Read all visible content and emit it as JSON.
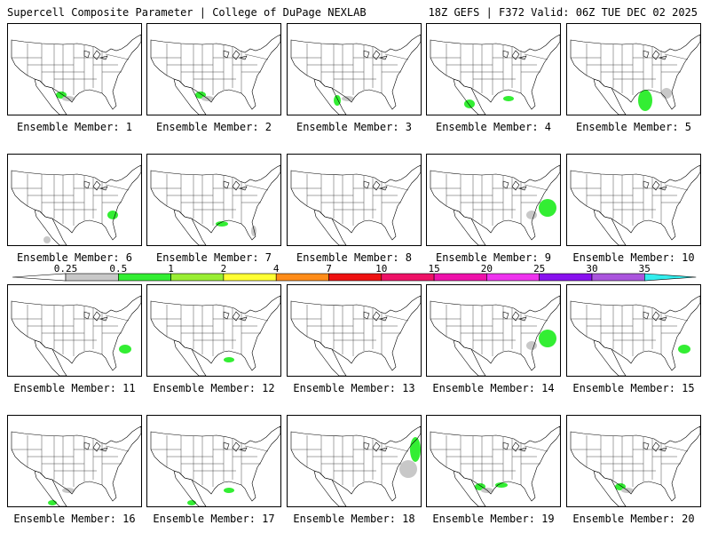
{
  "header": {
    "left": "Supercell Composite Parameter | College of DuPage NEXLAB",
    "right": "18Z GEFS | F372 Valid: 06Z TUE DEC 02 2025"
  },
  "colorbar": {
    "ticks": [
      "0.25",
      "0.5",
      "1",
      "2",
      "4",
      "7",
      "10",
      "15",
      "20",
      "25",
      "30",
      "35"
    ],
    "colors": [
      "#c8c8c8",
      "#33ee33",
      "#99ee33",
      "#ffff33",
      "#ff8c19",
      "#ee1111",
      "#ee1166",
      "#ee11aa",
      "#ee33ee",
      "#8811ee",
      "#aa55dd",
      "#33eeee"
    ]
  },
  "members": [
    {
      "label": "Ensemble Member: 1",
      "blobs": [
        {
          "region": "s-texas",
          "color": "#c8c8c8"
        },
        {
          "region": "s-texas",
          "color": "#33ee33"
        },
        {
          "region": "gulf-west",
          "color": "#c8c8c8"
        }
      ]
    },
    {
      "label": "Ensemble Member: 2",
      "blobs": [
        {
          "region": "s-texas",
          "color": "#33ee33"
        },
        {
          "region": "gulf-west",
          "color": "#c8c8c8"
        }
      ]
    },
    {
      "label": "Ensemble Member: 3",
      "blobs": [
        {
          "region": "texas",
          "color": "#33ee33"
        },
        {
          "region": "gulf-west",
          "color": "#c8c8c8"
        }
      ]
    },
    {
      "label": "Ensemble Member: 4",
      "blobs": [
        {
          "region": "gulf-central",
          "color": "#33ee33"
        },
        {
          "region": "gulf-east",
          "color": "#33ee33"
        }
      ]
    },
    {
      "label": "Ensemble Member: 5",
      "blobs": [
        {
          "region": "lower-ms",
          "color": "#33ee33"
        },
        {
          "region": "se-coast",
          "color": "#c8c8c8"
        }
      ]
    },
    {
      "label": "Ensemble Member: 6",
      "blobs": [
        {
          "region": "carolinas",
          "color": "#33ee33"
        },
        {
          "region": "mexico-west",
          "color": "#c8c8c8"
        }
      ]
    },
    {
      "label": "Ensemble Member: 7",
      "blobs": [
        {
          "region": "gulf-coast",
          "color": "#33ee33"
        },
        {
          "region": "florida",
          "color": "#c8c8c8"
        }
      ]
    },
    {
      "label": "Ensemble Member: 8",
      "blobs": []
    },
    {
      "label": "Ensemble Member: 9",
      "blobs": [
        {
          "region": "atlantic",
          "color": "#33ee33"
        },
        {
          "region": "carolinas",
          "color": "#c8c8c8"
        }
      ]
    },
    {
      "label": "Ensemble Member: 10",
      "blobs": []
    },
    {
      "label": "Ensemble Member: 11",
      "blobs": [
        {
          "region": "atlantic-south",
          "color": "#33ee33"
        }
      ]
    },
    {
      "label": "Ensemble Member: 12",
      "blobs": [
        {
          "region": "gulf-east",
          "color": "#33ee33"
        }
      ]
    },
    {
      "label": "Ensemble Member: 13",
      "blobs": []
    },
    {
      "label": "Ensemble Member: 14",
      "blobs": [
        {
          "region": "atlantic",
          "color": "#33ee33"
        },
        {
          "region": "carolinas",
          "color": "#c8c8c8"
        }
      ]
    },
    {
      "label": "Ensemble Member: 15",
      "blobs": [
        {
          "region": "atlantic-south",
          "color": "#33ee33"
        }
      ]
    },
    {
      "label": "Ensemble Member: 16",
      "blobs": [
        {
          "region": "mexico-south",
          "color": "#33ee33"
        },
        {
          "region": "gulf-west",
          "color": "#c8c8c8"
        }
      ]
    },
    {
      "label": "Ensemble Member: 17",
      "blobs": [
        {
          "region": "gulf-east",
          "color": "#33ee33"
        },
        {
          "region": "mexico-south",
          "color": "#33ee33"
        }
      ]
    },
    {
      "label": "Ensemble Member: 18",
      "blobs": [
        {
          "region": "ne-coast",
          "color": "#33ee33"
        },
        {
          "region": "atlantic",
          "color": "#c8c8c8"
        }
      ]
    },
    {
      "label": "Ensemble Member: 19",
      "blobs": [
        {
          "region": "s-texas",
          "color": "#33ee33"
        },
        {
          "region": "gulf-coast",
          "color": "#33ee33"
        },
        {
          "region": "gulf-west",
          "color": "#c8c8c8"
        }
      ]
    },
    {
      "label": "Ensemble Member: 20",
      "blobs": [
        {
          "region": "s-texas",
          "color": "#33ee33"
        },
        {
          "region": "gulf-west",
          "color": "#c8c8c8"
        }
      ]
    }
  ]
}
